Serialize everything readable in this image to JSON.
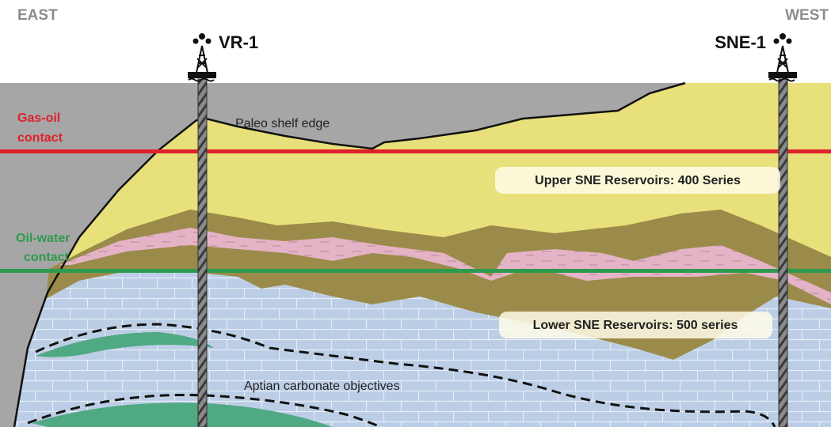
{
  "directions": {
    "left": "EAST",
    "right": "WEST"
  },
  "wells": [
    {
      "label": "VR-1"
    },
    {
      "label": "SNE-1"
    }
  ],
  "contacts": [
    {
      "label": [
        "Gas-oil",
        "contact"
      ]
    },
    {
      "label": [
        "Oil-water",
        "contact"
      ]
    }
  ],
  "annotations": {
    "shelf": "Paleo shelf edge",
    "upper": "Upper SNE Reservoirs: 400 Series",
    "lower": "Lower SNE Reservoirs: 500 series",
    "aptian": "Aptian carbonate objectives"
  }
}
